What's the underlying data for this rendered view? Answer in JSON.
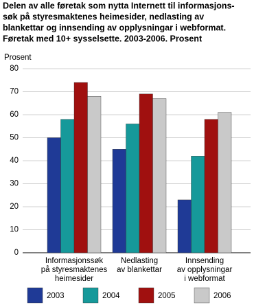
{
  "chart_data": {
    "type": "bar",
    "title": [
      "Delen av alle føretak som nytta Internett til informasjons-",
      "søk på styresmaktenes heimesider, nedlasting av",
      "blankettar og innsending av opplysningar i webformat.",
      "Føretak med 10+ sysselsette. 2003-2006. Prosent"
    ],
    "y_label": "Prosent",
    "categories": [
      [
        "Informasjonssøk",
        "på styresmaktenes",
        "heimesider"
      ],
      [
        "Nedlasting",
        "av blankettar"
      ],
      [
        "Innsending",
        "av opplysningar",
        "i webformat"
      ]
    ],
    "series": [
      {
        "name": "2003",
        "color": "#1f3a96",
        "values": [
          50,
          45,
          23
        ]
      },
      {
        "name": "2004",
        "color": "#16999a",
        "values": [
          58,
          56,
          42
        ]
      },
      {
        "name": "2005",
        "color": "#a0100f",
        "values": [
          74,
          69,
          58
        ]
      },
      {
        "name": "2006",
        "color": "#c9c9c9",
        "values": [
          68,
          67,
          61
        ]
      }
    ],
    "ylim": [
      0,
      80
    ],
    "yticks": [
      0,
      10,
      20,
      30,
      40,
      50,
      60,
      70,
      80
    ],
    "grid": true
  }
}
